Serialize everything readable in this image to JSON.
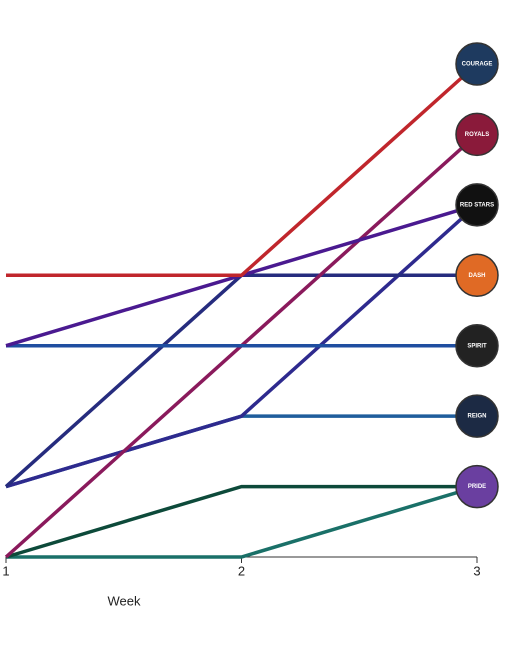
{
  "chart_data": {
    "type": "line",
    "x": [
      1,
      2,
      3
    ],
    "xlim": [
      1,
      3
    ],
    "xticks": [
      1,
      2,
      3
    ],
    "ylim": [
      0,
      7
    ],
    "x_label": "Week",
    "series": [
      {
        "color": "#1a7068",
        "values": [
          0,
          0,
          1
        ]
      },
      {
        "color": "#0d4a3a",
        "values": [
          0,
          1,
          1
        ]
      },
      {
        "color": "#1f5d9c",
        "values": [
          1,
          2,
          2
        ]
      },
      {
        "color": "#2e2a8e",
        "values": [
          1,
          2,
          5
        ]
      },
      {
        "color": "#262c7e",
        "values": [
          1,
          4,
          4
        ]
      },
      {
        "color": "#8a1a5c",
        "values": [
          0,
          3,
          6
        ]
      },
      {
        "color": "#1f4ea0",
        "values": [
          3,
          3,
          3
        ]
      },
      {
        "color": "#4a1a90",
        "values": [
          3,
          4,
          5
        ]
      },
      {
        "color": "#c0262c",
        "values": [
          4,
          4,
          7
        ]
      }
    ],
    "logos": [
      {
        "label": "COURAGE",
        "color": "#1e3a5f",
        "level": 7
      },
      {
        "label": "ROYALS",
        "color": "#8a1a3a",
        "level": 6
      },
      {
        "label": "RED STARS",
        "color": "#111111",
        "level": 5
      },
      {
        "label": "DASH",
        "color": "#e06a25",
        "level": 4
      },
      {
        "label": "SPIRIT",
        "color": "#222222",
        "level": 3
      },
      {
        "label": "REIGN",
        "color": "#1c2a44",
        "level": 2
      },
      {
        "label": "PRIDE",
        "color": "#6a3fa0",
        "level": 1
      }
    ]
  }
}
